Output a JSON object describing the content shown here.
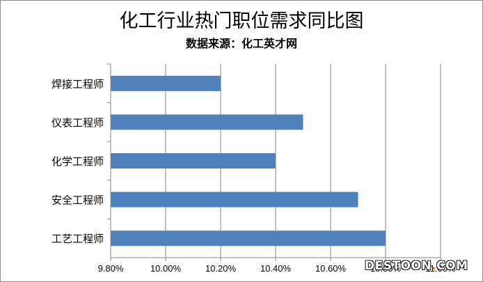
{
  "chart_data": {
    "type": "bar",
    "orientation": "horizontal",
    "title": "化工行业热门职位需求同比图",
    "subtitle": "数据来源：化工英才网",
    "categories": [
      "焊接工程师",
      "仪表工程师",
      "化学工程师",
      "安全工程师",
      "工艺工程师"
    ],
    "values": [
      10.2,
      10.5,
      10.4,
      10.7,
      10.8
    ],
    "xlim": [
      9.8,
      11.0
    ],
    "x_ticks": [
      "9.80%",
      "10.00%",
      "10.20%",
      "10.40%",
      "10.60%",
      "10.80%",
      "11.00%"
    ],
    "tick_values": [
      9.8,
      10.0,
      10.2,
      10.4,
      10.6,
      10.8,
      11.0
    ],
    "grid": "vertical",
    "legend": "none",
    "bar_color": "#4f81bd"
  },
  "watermark": {
    "left": "DESTOON",
    "dot": ".",
    "right": "COM"
  }
}
